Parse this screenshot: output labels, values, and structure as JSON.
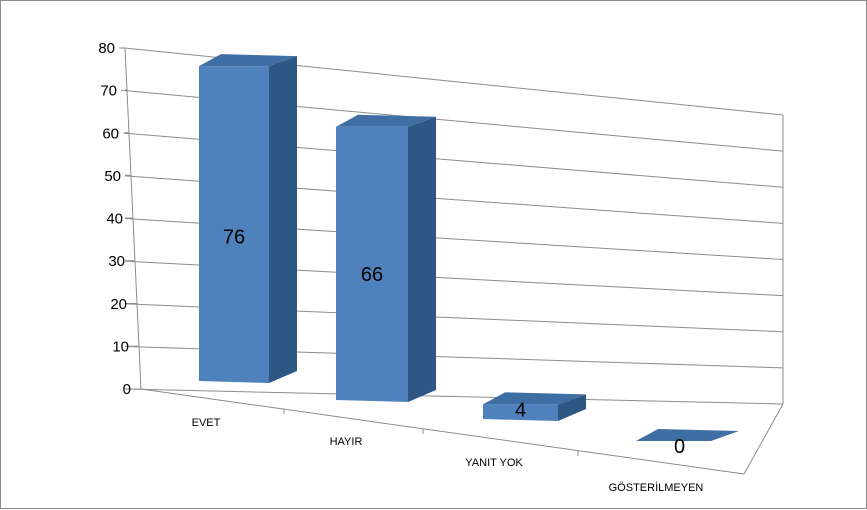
{
  "chart_data": {
    "type": "bar",
    "categories": [
      "EVET",
      "HAYIR",
      "YANIT YOK",
      "GÖSTERİLMEYEN"
    ],
    "values": [
      76,
      66,
      4,
      0
    ],
    "data_labels": [
      "76",
      "66",
      "4",
      "0"
    ],
    "yticks": [
      "0",
      "10",
      "20",
      "30",
      "40",
      "50",
      "60",
      "70",
      "80"
    ],
    "ylim": [
      0,
      80
    ],
    "grid": true,
    "legend": "none",
    "style": "3d-column",
    "colors": {
      "front": "#4f81bd",
      "side": "#2e5883",
      "top": "#3e6ea3",
      "grid": "#8c8c8c"
    }
  }
}
